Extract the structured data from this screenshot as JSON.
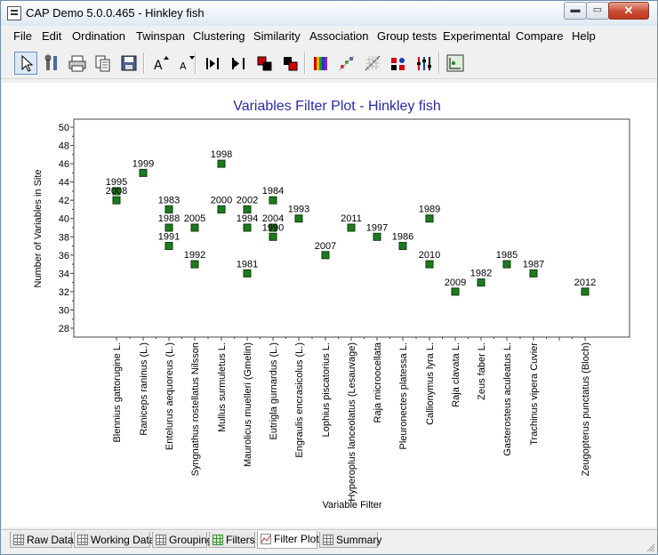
{
  "window": {
    "title": "CAP Demo 5.0.0.465 - Hinkley fish",
    "minimize": "▬",
    "maximize": "▭",
    "close": "✕"
  },
  "menu": [
    {
      "label": "File",
      "name": "file"
    },
    {
      "label": "Edit",
      "name": "edit"
    },
    {
      "label": "Ordination",
      "name": "ordination"
    },
    {
      "label": "Twinspan",
      "name": "twinspan"
    },
    {
      "label": "Clustering",
      "name": "clustering"
    },
    {
      "label": "Similarity",
      "name": "similarity"
    },
    {
      "label": "Association",
      "name": "association"
    },
    {
      "label": "Group tests",
      "name": "group-tests"
    },
    {
      "label": "Experimental",
      "name": "experimental"
    },
    {
      "label": "Compare",
      "name": "compare"
    },
    {
      "label": "Help",
      "name": "help"
    }
  ],
  "toolbar": [
    {
      "icon": "pointer-icon",
      "active": true
    },
    {
      "icon": "tools-icon"
    },
    {
      "icon": "print-icon"
    },
    {
      "icon": "copy-icon"
    },
    {
      "icon": "save-icon"
    },
    {
      "icon": "font-larger-icon"
    },
    {
      "icon": "font-smaller-icon"
    },
    {
      "icon": "move-left-icon"
    },
    {
      "icon": "move-right-icon"
    },
    {
      "icon": "color-swatch-icon"
    },
    {
      "icon": "marker-color-icon"
    },
    {
      "icon": "palette-icon"
    },
    {
      "icon": "scatter-icon"
    },
    {
      "icon": "grid-icon"
    },
    {
      "icon": "symbols-icon"
    },
    {
      "icon": "sliders-icon"
    },
    {
      "icon": "axis-settings-icon"
    }
  ],
  "chart_data": {
    "type": "scatter",
    "title": "Variables Filter Plot - Hinkley fish",
    "xlabel": "Variable Filter",
    "ylabel": "Number of Variables in Site",
    "ylim": [
      28,
      50
    ],
    "yticks": [
      28,
      30,
      32,
      34,
      36,
      38,
      40,
      42,
      44,
      46,
      48,
      50
    ],
    "grid": false,
    "categories": [
      "Blennius gattorugine L.",
      "Raniceps raninus (L.)",
      "Entelurus aequoreus (L.)",
      "Syngnathus rostellatus Nilsson",
      "Mullus surmuletus L.",
      "Maurolicus muelleri (Gmelin)",
      "Eutrigla gurnardus (L.)",
      "Engraulis encrasicolus (L.)",
      "Lophius piscatorius L.",
      "Hyperoplus lanceolatus (Lesauvage)",
      "Raja microocellata",
      "Pleuronectes platessa L.",
      "Callionymus lyra L.",
      "Raja clavata L.",
      "Zeus faber L.",
      "Gasterosteus aculeatus L.",
      "Trachinus vipera Cuvier",
      "",
      "Zeugopterus punctatus (Bloch)"
    ],
    "points": [
      {
        "x": "Blennius gattorugine L.",
        "y": 43,
        "label": "1995"
      },
      {
        "x": "Blennius gattorugine L.",
        "y": 42,
        "label": "2008"
      },
      {
        "x": "Raniceps raninus (L.)",
        "y": 45,
        "label": "1999"
      },
      {
        "x": "Entelurus aequoreus (L.)",
        "y": 41,
        "label": "1983"
      },
      {
        "x": "Entelurus aequoreus (L.)",
        "y": 39,
        "label": "1988"
      },
      {
        "x": "Entelurus aequoreus (L.)",
        "y": 37,
        "label": "1991"
      },
      {
        "x": "Syngnathus rostellatus Nilsson",
        "y": 39,
        "label": "2005"
      },
      {
        "x": "Syngnathus rostellatus Nilsson",
        "y": 35,
        "label": "1992"
      },
      {
        "x": "Mullus surmuletus L.",
        "y": 46,
        "label": "1998"
      },
      {
        "x": "Mullus surmuletus L.",
        "y": 41,
        "label": "2000"
      },
      {
        "x": "Maurolicus muelleri (Gmelin)",
        "y": 41,
        "label": "2002"
      },
      {
        "x": "Maurolicus muelleri (Gmelin)",
        "y": 39,
        "label": "1994"
      },
      {
        "x": "Maurolicus muelleri (Gmelin)",
        "y": 34,
        "label": "1981"
      },
      {
        "x": "Eutrigla gurnardus (L.)",
        "y": 42,
        "label": "1984"
      },
      {
        "x": "Eutrigla gurnardus (L.)",
        "y": 39,
        "label": "2004"
      },
      {
        "x": "Eutrigla gurnardus (L.)",
        "y": 38,
        "label": "1990"
      },
      {
        "x": "Engraulis encrasicolus (L.)",
        "y": 40,
        "label": "1993"
      },
      {
        "x": "Lophius piscatorius L.",
        "y": 36,
        "label": "2007"
      },
      {
        "x": "Hyperoplus lanceolatus (Lesauvage)",
        "y": 39,
        "label": "2011"
      },
      {
        "x": "Raja microocellata",
        "y": 38,
        "label": "1997"
      },
      {
        "x": "Pleuronectes platessa L.",
        "y": 37,
        "label": "1986"
      },
      {
        "x": "Callionymus lyra L.",
        "y": 40,
        "label": "1989"
      },
      {
        "x": "Callionymus lyra L.",
        "y": 35,
        "label": "2010"
      },
      {
        "x": "Raja clavata L.",
        "y": 32,
        "label": "2009"
      },
      {
        "x": "Zeus faber L.",
        "y": 33,
        "label": "1982"
      },
      {
        "x": "Gasterosteus aculeatus L.",
        "y": 35,
        "label": "1985"
      },
      {
        "x": "Trachinus vipera Cuvier",
        "y": 34,
        "label": "1987"
      },
      {
        "x": "Zeugopterus punctatus (Bloch)",
        "y": 32,
        "label": "2012"
      }
    ],
    "colors": {
      "marker": "#1f7a1f",
      "marker_edge": "#0b3d0b",
      "title": "#2a2aa8",
      "axis": "#444444"
    }
  },
  "tabs": [
    {
      "label": "Raw Data",
      "name": "raw-data"
    },
    {
      "label": "Working Data",
      "name": "working-data"
    },
    {
      "label": "Grouping",
      "name": "grouping"
    },
    {
      "label": "Filters",
      "name": "filters"
    },
    {
      "label": "Filter Plot",
      "name": "filter-plot",
      "active": true
    },
    {
      "label": "Summary",
      "name": "summary"
    }
  ]
}
